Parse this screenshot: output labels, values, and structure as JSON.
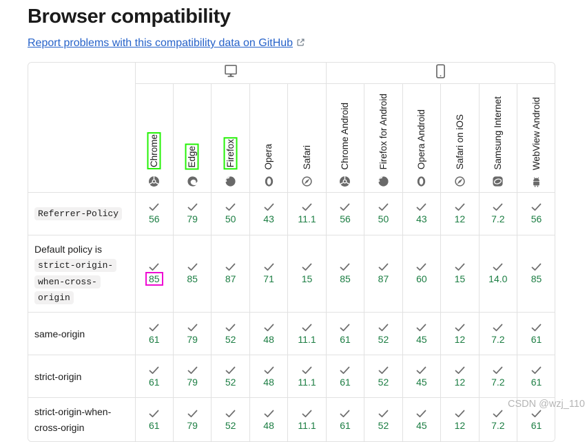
{
  "header": {
    "title": "Browser compatibility"
  },
  "report_link": {
    "label": "Report problems with this compatibility data on GitHub",
    "icon": "external-link-icon"
  },
  "watermark": {
    "text": "CSDN @wzj_110"
  },
  "colors": {
    "link_blue": "#2662c9",
    "version_green": "#1b7d42",
    "check_gray": "#6f6f6f",
    "icon_gray": "#696969",
    "border_gray": "#e1e1e1",
    "code_background": "#f2f1f1",
    "annotation_green": "#24f106",
    "annotation_magenta": "#ef0bd3",
    "text_primary": "#1b1b1b",
    "watermark_gray": "#b5b5b5"
  },
  "table": {
    "support_icon": "check-icon",
    "groups": [
      {
        "name": "desktop",
        "icon": "desktop-icon",
        "span": 5
      },
      {
        "name": "mobile",
        "icon": "mobile-icon",
        "span": 6
      }
    ],
    "browsers": [
      {
        "label": "Chrome",
        "icon": "chrome-icon",
        "annotated": true
      },
      {
        "label": "Edge",
        "icon": "edge-icon",
        "annotated": true
      },
      {
        "label": "Firefox",
        "icon": "firefox-icon",
        "annotated": true
      },
      {
        "label": "Opera",
        "icon": "opera-icon",
        "annotated": false
      },
      {
        "label": "Safari",
        "icon": "safari-icon",
        "annotated": false
      },
      {
        "label": "Chrome Android",
        "icon": "chrome-icon",
        "annotated": false
      },
      {
        "label": "Firefox for Android",
        "icon": "firefox-icon",
        "annotated": false
      },
      {
        "label": "Opera Android",
        "icon": "opera-icon",
        "annotated": false
      },
      {
        "label": "Safari on iOS",
        "icon": "safari-icon",
        "annotated": false
      },
      {
        "label": "Samsung Internet",
        "icon": "samsung-icon",
        "annotated": false
      },
      {
        "label": "WebView Android",
        "icon": "webview-icon",
        "annotated": false
      }
    ],
    "rows": [
      {
        "label_parts": [
          {
            "text": "Referrer-Policy",
            "code": true
          }
        ],
        "support": [
          {
            "version": "56",
            "supported": true
          },
          {
            "version": "79",
            "supported": true
          },
          {
            "version": "50",
            "supported": true
          },
          {
            "version": "43",
            "supported": true
          },
          {
            "version": "11.1",
            "supported": true
          },
          {
            "version": "56",
            "supported": true
          },
          {
            "version": "50",
            "supported": true
          },
          {
            "version": "43",
            "supported": true
          },
          {
            "version": "12",
            "supported": true
          },
          {
            "version": "7.2",
            "supported": true
          },
          {
            "version": "56",
            "supported": true
          }
        ]
      },
      {
        "label_parts": [
          {
            "text": "Default policy is ",
            "code": false
          },
          {
            "text": "strict-origin-when-cross-origin",
            "code": true
          }
        ],
        "support": [
          {
            "version": "85",
            "supported": true,
            "annotated": true
          },
          {
            "version": "85",
            "supported": true
          },
          {
            "version": "87",
            "supported": true
          },
          {
            "version": "71",
            "supported": true
          },
          {
            "version": "15",
            "supported": true
          },
          {
            "version": "85",
            "supported": true
          },
          {
            "version": "87",
            "supported": true
          },
          {
            "version": "60",
            "supported": true
          },
          {
            "version": "15",
            "supported": true
          },
          {
            "version": "14.0",
            "supported": true
          },
          {
            "version": "85",
            "supported": true
          }
        ]
      },
      {
        "label_parts": [
          {
            "text": "same-origin",
            "code": false
          }
        ],
        "support": [
          {
            "version": "61",
            "supported": true
          },
          {
            "version": "79",
            "supported": true
          },
          {
            "version": "52",
            "supported": true
          },
          {
            "version": "48",
            "supported": true
          },
          {
            "version": "11.1",
            "supported": true
          },
          {
            "version": "61",
            "supported": true
          },
          {
            "version": "52",
            "supported": true
          },
          {
            "version": "45",
            "supported": true
          },
          {
            "version": "12",
            "supported": true
          },
          {
            "version": "7.2",
            "supported": true
          },
          {
            "version": "61",
            "supported": true
          }
        ]
      },
      {
        "label_parts": [
          {
            "text": "strict-origin",
            "code": false
          }
        ],
        "support": [
          {
            "version": "61",
            "supported": true
          },
          {
            "version": "79",
            "supported": true
          },
          {
            "version": "52",
            "supported": true
          },
          {
            "version": "48",
            "supported": true
          },
          {
            "version": "11.1",
            "supported": true
          },
          {
            "version": "61",
            "supported": true
          },
          {
            "version": "52",
            "supported": true
          },
          {
            "version": "45",
            "supported": true
          },
          {
            "version": "12",
            "supported": true
          },
          {
            "version": "7.2",
            "supported": true
          },
          {
            "version": "61",
            "supported": true
          }
        ]
      },
      {
        "label_parts": [
          {
            "text": "strict-origin-when-cross-origin",
            "code": false
          }
        ],
        "support": [
          {
            "version": "61",
            "supported": true
          },
          {
            "version": "79",
            "supported": true
          },
          {
            "version": "52",
            "supported": true
          },
          {
            "version": "48",
            "supported": true
          },
          {
            "version": "11.1",
            "supported": true
          },
          {
            "version": "61",
            "supported": true
          },
          {
            "version": "52",
            "supported": true
          },
          {
            "version": "45",
            "supported": true
          },
          {
            "version": "12",
            "supported": true
          },
          {
            "version": "7.2",
            "supported": true
          },
          {
            "version": "61",
            "supported": true
          }
        ]
      }
    ]
  }
}
